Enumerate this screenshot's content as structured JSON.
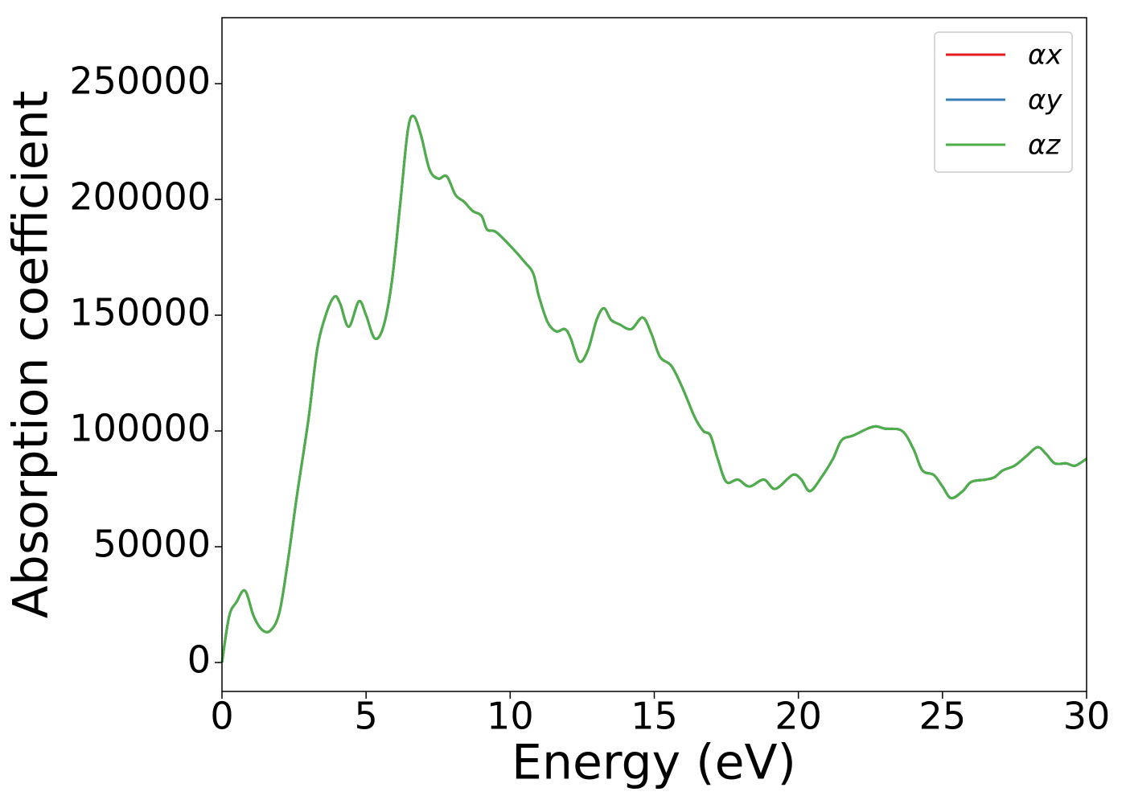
{
  "chart_data": {
    "type": "line",
    "xlabel": "Energy (eV)",
    "ylabel": "Absorption coefficient",
    "x": [
      0,
      0.25,
      0.5,
      0.8,
      1.1,
      1.4,
      1.7,
      2.0,
      2.3,
      2.6,
      3.0,
      3.3,
      3.6,
      3.9,
      4.1,
      4.4,
      4.75,
      5.0,
      5.3,
      5.6,
      5.9,
      6.2,
      6.45,
      6.65,
      6.9,
      7.2,
      7.5,
      7.8,
      8.1,
      8.4,
      8.7,
      9.0,
      9.2,
      9.5,
      10.0,
      10.5,
      10.8,
      11.0,
      11.3,
      11.6,
      11.9,
      12.1,
      12.4,
      12.7,
      13.0,
      13.25,
      13.5,
      13.8,
      14.2,
      14.6,
      14.9,
      15.2,
      15.6,
      16.0,
      16.4,
      16.7,
      16.95,
      17.2,
      17.5,
      17.9,
      18.3,
      18.8,
      19.2,
      19.8,
      20.1,
      20.4,
      20.8,
      21.2,
      21.5,
      21.9,
      22.4,
      22.7,
      23.0,
      23.6,
      24.0,
      24.3,
      24.7,
      25.0,
      25.3,
      25.7,
      26.0,
      26.5,
      26.8,
      27.1,
      27.5,
      27.9,
      28.3,
      28.6,
      28.9,
      29.3,
      29.6,
      30.0
    ],
    "series": [
      {
        "name": "αx",
        "color": "#e41a1c",
        "values": [
          0,
          20000,
          26000,
          31000,
          20000,
          14000,
          14000,
          22000,
          45000,
          72000,
          105000,
          135000,
          150000,
          158000,
          155000,
          145000,
          156000,
          150000,
          140000,
          145000,
          165000,
          200000,
          230000,
          236000,
          228000,
          213000,
          209000,
          210000,
          202000,
          199000,
          195000,
          193000,
          187000,
          186000,
          180000,
          173000,
          168000,
          158000,
          147000,
          143000,
          144000,
          140000,
          130000,
          135000,
          148000,
          153000,
          148000,
          146000,
          144000,
          149000,
          142000,
          132000,
          128000,
          118000,
          106000,
          100000,
          98000,
          88000,
          78000,
          79000,
          76000,
          79000,
          75000,
          81000,
          79000,
          74000,
          80000,
          88000,
          96000,
          98000,
          101000,
          102000,
          101000,
          100000,
          92000,
          83000,
          81000,
          76000,
          71000,
          74000,
          78000,
          79000,
          80000,
          83000,
          85000,
          89000,
          93000,
          90000,
          86000,
          86000,
          85000,
          88000
        ]
      },
      {
        "name": "αy",
        "color": "#377eb8",
        "values": [
          0,
          20000,
          26000,
          31000,
          20000,
          14000,
          14000,
          22000,
          45000,
          72000,
          105000,
          135000,
          150000,
          158000,
          155000,
          145000,
          156000,
          150000,
          140000,
          145000,
          165000,
          200000,
          230000,
          236000,
          228000,
          213000,
          209000,
          210000,
          202000,
          199000,
          195000,
          193000,
          187000,
          186000,
          180000,
          173000,
          168000,
          158000,
          147000,
          143000,
          144000,
          140000,
          130000,
          135000,
          148000,
          153000,
          148000,
          146000,
          144000,
          149000,
          142000,
          132000,
          128000,
          118000,
          106000,
          100000,
          98000,
          88000,
          78000,
          79000,
          76000,
          79000,
          75000,
          81000,
          79000,
          74000,
          80000,
          88000,
          96000,
          98000,
          101000,
          102000,
          101000,
          100000,
          92000,
          83000,
          81000,
          76000,
          71000,
          74000,
          78000,
          79000,
          80000,
          83000,
          85000,
          89000,
          93000,
          90000,
          86000,
          86000,
          85000,
          88000
        ]
      },
      {
        "name": "αz",
        "color": "#4daf4a",
        "values": [
          0,
          20000,
          26000,
          31000,
          20000,
          14000,
          14000,
          22000,
          45000,
          72000,
          105000,
          135000,
          150000,
          158000,
          155000,
          145000,
          156000,
          150000,
          140000,
          145000,
          165000,
          200000,
          230000,
          236000,
          228000,
          213000,
          209000,
          210000,
          202000,
          199000,
          195000,
          193000,
          187000,
          186000,
          180000,
          173000,
          168000,
          158000,
          147000,
          143000,
          144000,
          140000,
          130000,
          135000,
          148000,
          153000,
          148000,
          146000,
          144000,
          149000,
          142000,
          132000,
          128000,
          118000,
          106000,
          100000,
          98000,
          88000,
          78000,
          79000,
          76000,
          79000,
          75000,
          81000,
          79000,
          74000,
          80000,
          88000,
          96000,
          98000,
          101000,
          102000,
          101000,
          100000,
          92000,
          83000,
          81000,
          76000,
          71000,
          74000,
          78000,
          79000,
          80000,
          83000,
          85000,
          89000,
          93000,
          90000,
          86000,
          86000,
          85000,
          88000
        ]
      }
    ],
    "xlim": [
      0,
      30
    ],
    "xticks": [
      0,
      5,
      10,
      15,
      20,
      25,
      30
    ],
    "ylim": [
      -12500,
      278500
    ],
    "yticks": [
      0,
      50000,
      100000,
      150000,
      200000,
      250000
    ],
    "grid": false,
    "legend": "upper right"
  }
}
